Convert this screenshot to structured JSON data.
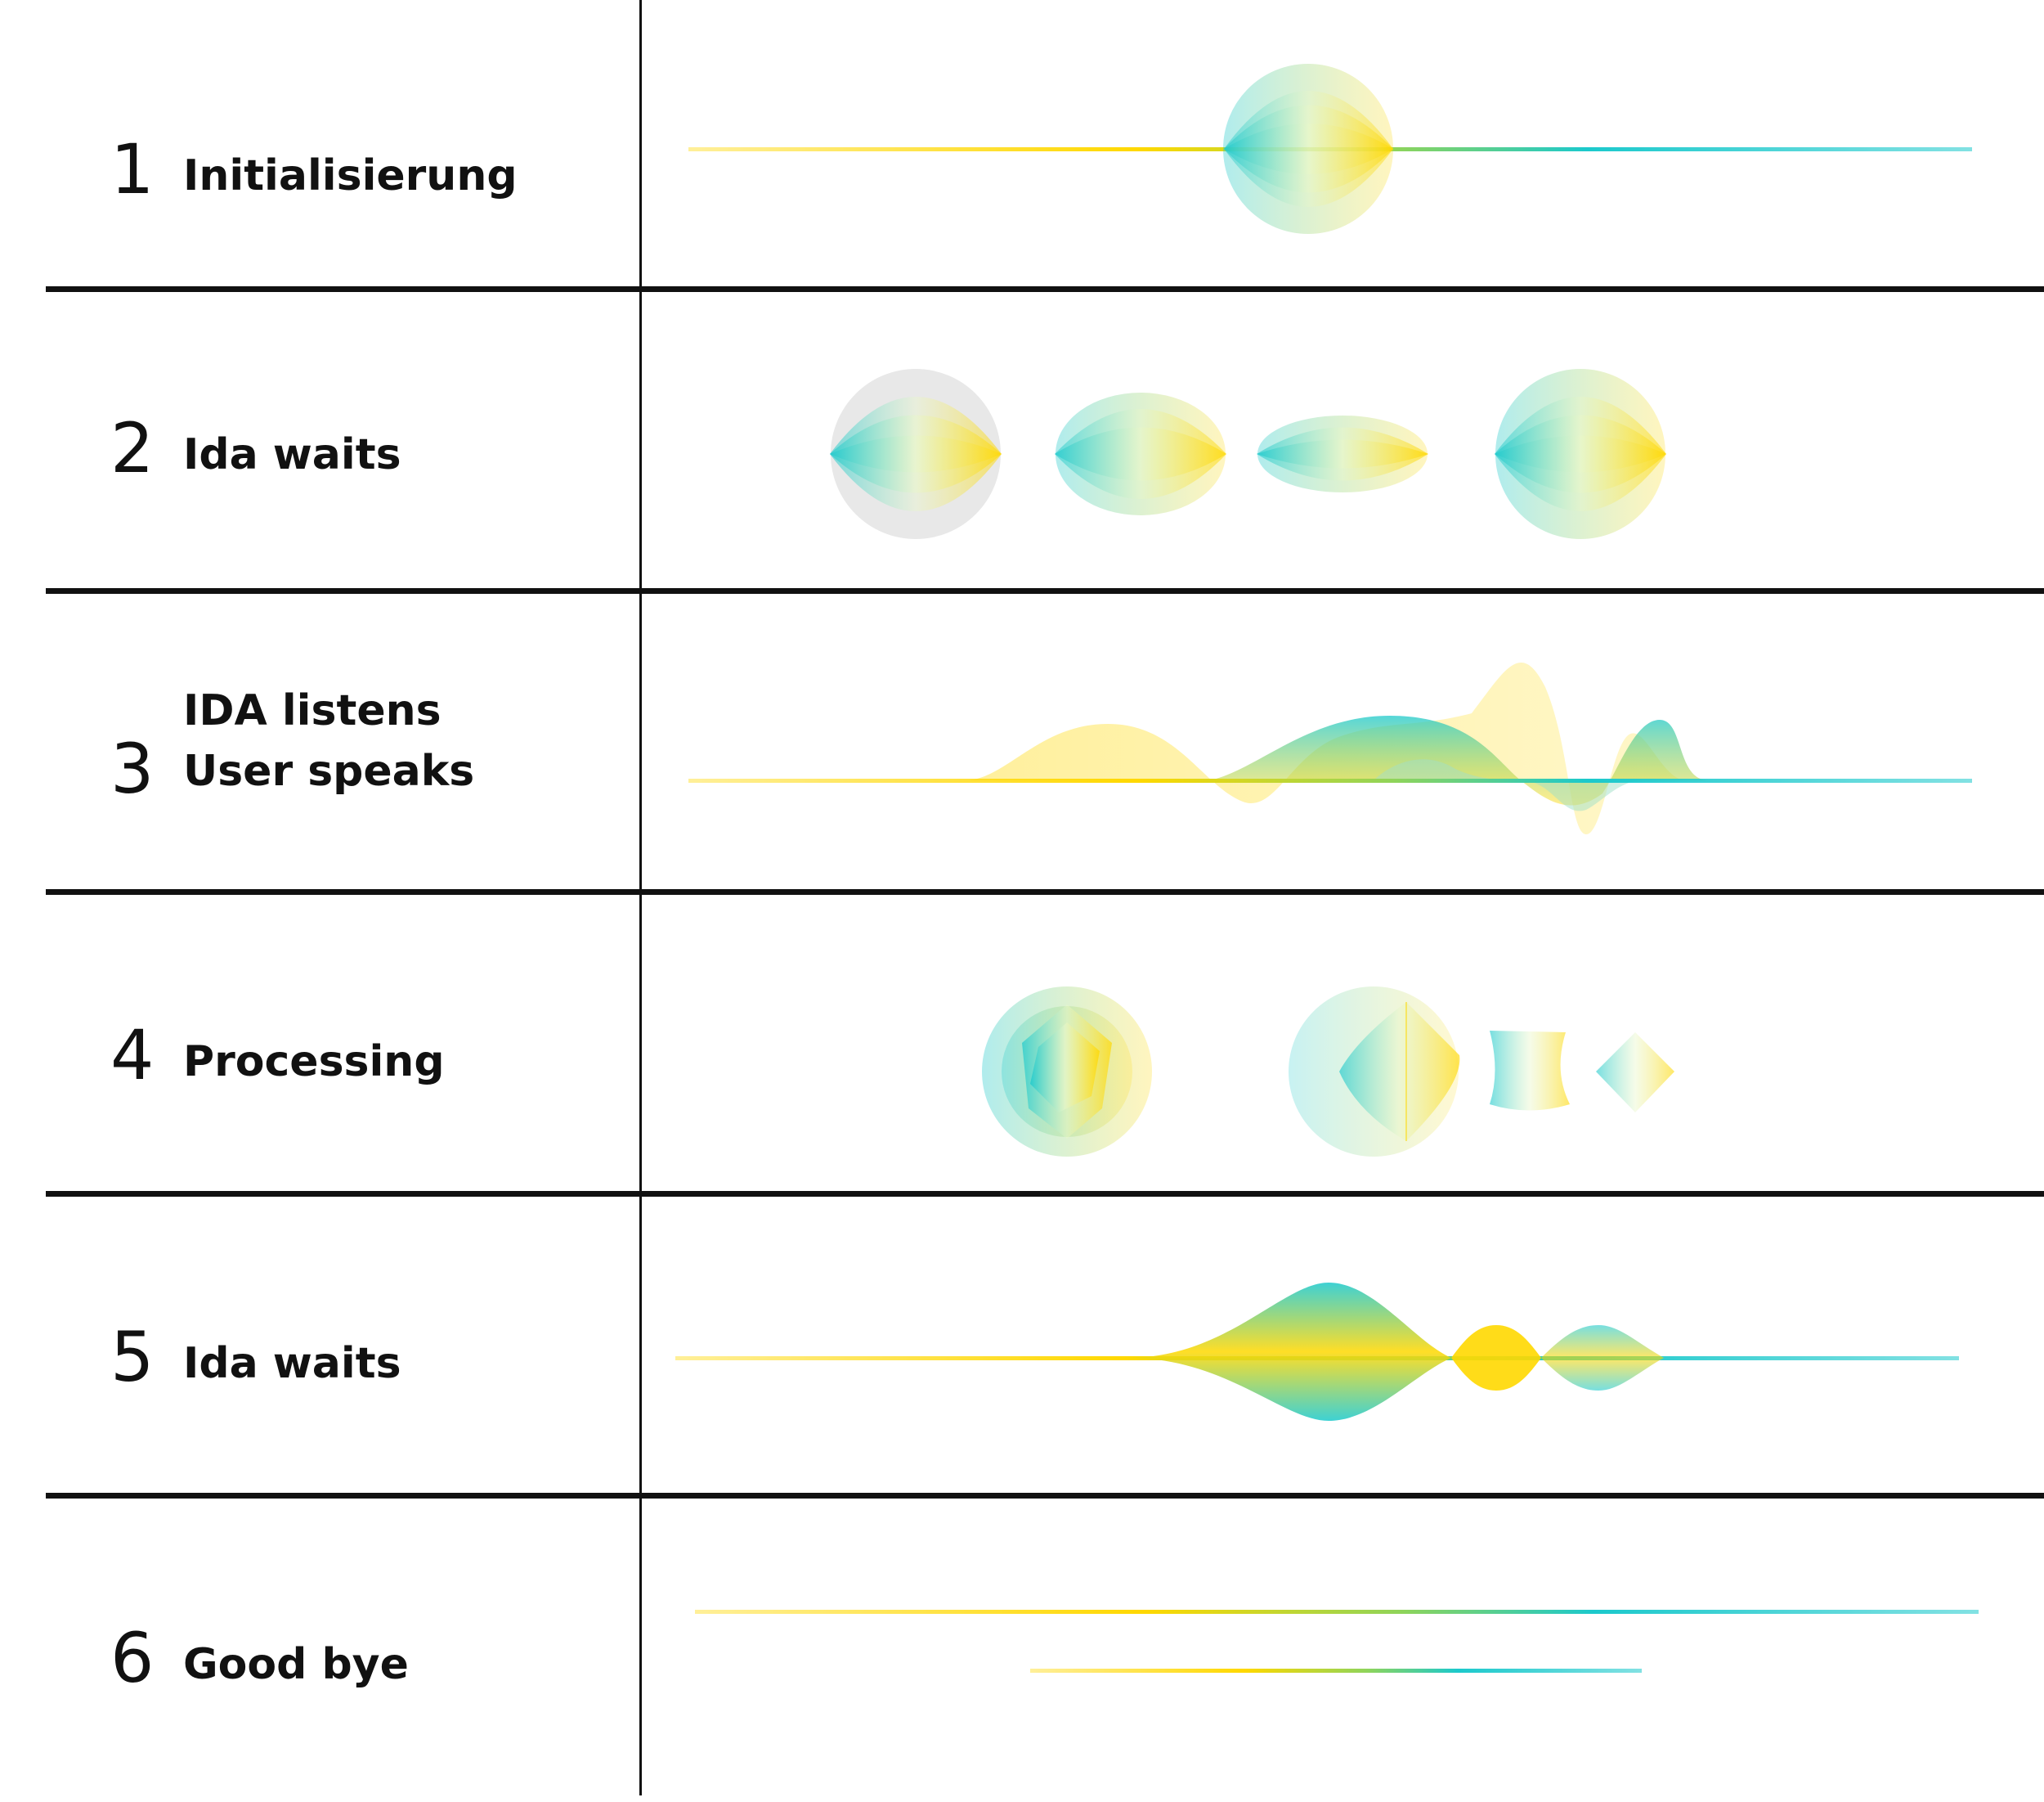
{
  "colors": {
    "cyan": "#1cc9cc",
    "yellow": "#ffd800",
    "grey": "#e6e6e6",
    "rule": "#111111"
  },
  "rows": [
    {
      "number": "1",
      "label": "Initialisierung",
      "visual": "line-with-orb"
    },
    {
      "number": "2",
      "label": "Ida waits",
      "visual": "four-orbs"
    },
    {
      "number": "3",
      "label_lines": [
        "IDA listens",
        "User speaks"
      ],
      "visual": "waveform"
    },
    {
      "number": "4",
      "label": "Processing",
      "visual": "crystal-shapes"
    },
    {
      "number": "5",
      "label": "Ida waits",
      "visual": "symmetric-wave"
    },
    {
      "number": "6",
      "label": "Good bye",
      "visual": "two-lines"
    }
  ]
}
